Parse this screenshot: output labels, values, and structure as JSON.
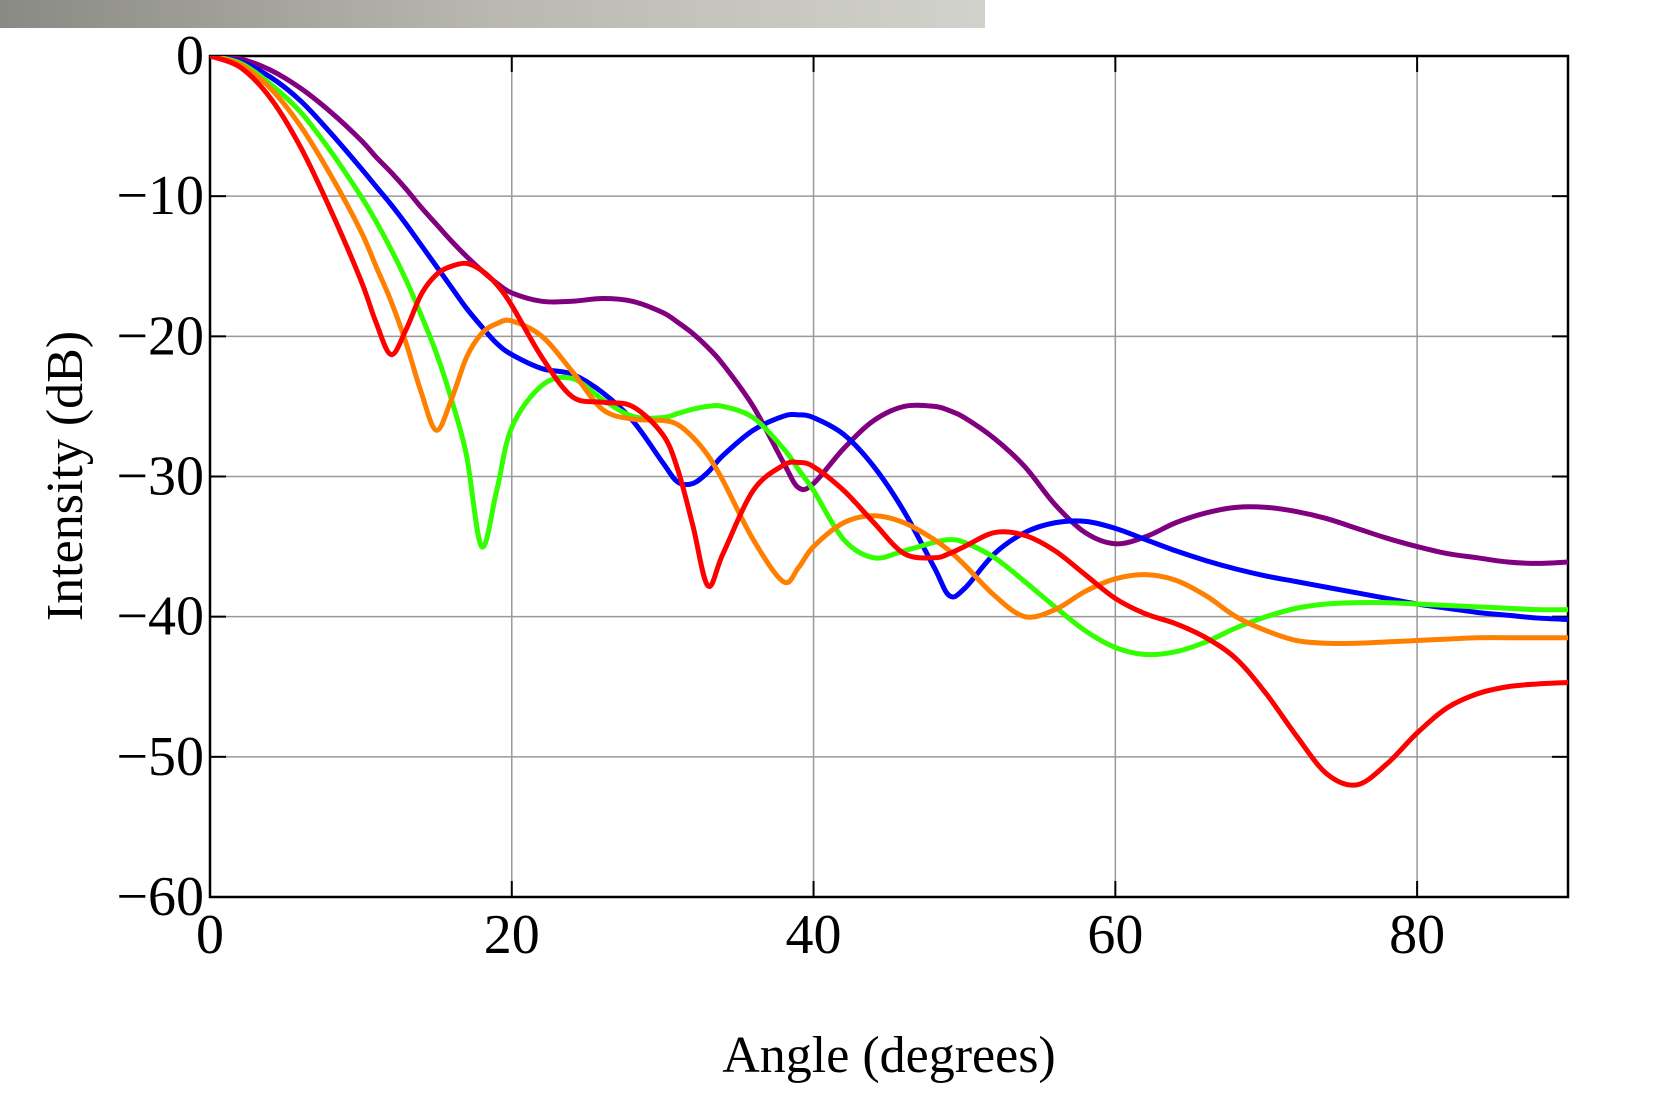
{
  "chart_data": {
    "type": "line",
    "xlabel": "Angle (degrees)",
    "ylabel": "Intensity (dB)",
    "xlim": [
      0,
      90
    ],
    "ylim": [
      -60,
      0
    ],
    "xticks": [
      0,
      20,
      40,
      60,
      80
    ],
    "yticks": [
      {
        "value": -60,
        "label": "−60"
      },
      {
        "value": -50,
        "label": "−50"
      },
      {
        "value": -40,
        "label": "−40"
      },
      {
        "value": -30,
        "label": "−30"
      },
      {
        "value": -20,
        "label": "−20"
      },
      {
        "value": -10,
        "label": "−10"
      },
      0
    ],
    "grid": true,
    "x": [
      0,
      2,
      4,
      6,
      8,
      10,
      11,
      12,
      13,
      14,
      15,
      16,
      17,
      18,
      19,
      20,
      22,
      24,
      26,
      28,
      30,
      31,
      32,
      33,
      34,
      36,
      38,
      39,
      40,
      42,
      44,
      46,
      48,
      49,
      50,
      52,
      54,
      56,
      58,
      60,
      62,
      64,
      66,
      68,
      70,
      72,
      74,
      76,
      78,
      80,
      82,
      84,
      86,
      88,
      90
    ],
    "series": [
      {
        "color": "#800080",
        "values": [
          0,
          -0.2,
          -1,
          -2.3,
          -4,
          -6,
          -7.2,
          -8.3,
          -9.5,
          -10.8,
          -12,
          -13.2,
          -14.3,
          -15.3,
          -16.2,
          -16.9,
          -17.5,
          -17.5,
          -17.3,
          -17.5,
          -18.3,
          -19,
          -19.8,
          -20.8,
          -22,
          -25,
          -29,
          -30.8,
          -30.5,
          -28,
          -26,
          -25,
          -25,
          -25.3,
          -25.8,
          -27.3,
          -29.3,
          -32,
          -34,
          -34.8,
          -34.3,
          -33.3,
          -32.6,
          -32.2,
          -32.2,
          -32.5,
          -33,
          -33.7,
          -34.4,
          -35,
          -35.5,
          -35.8,
          -36.1,
          -36.2,
          -36.1
        ]
      },
      {
        "color": "#0000ff",
        "values": [
          0,
          -0.4,
          -1.5,
          -3.2,
          -5.5,
          -8,
          -9.3,
          -10.6,
          -12,
          -13.5,
          -15,
          -16.5,
          -18,
          -19.3,
          -20.5,
          -21.3,
          -22.3,
          -22.7,
          -24,
          -26,
          -29,
          -30.4,
          -30.5,
          -29.7,
          -28.5,
          -26.7,
          -25.7,
          -25.6,
          -25.8,
          -27,
          -29.3,
          -32.5,
          -36.5,
          -38.5,
          -38,
          -35.5,
          -34,
          -33.3,
          -33.2,
          -33.7,
          -34.5,
          -35.3,
          -36,
          -36.6,
          -37.1,
          -37.5,
          -37.9,
          -38.3,
          -38.7,
          -39.1,
          -39.4,
          -39.7,
          -39.9,
          -40.1,
          -40.2
        ]
      },
      {
        "color": "#33ff00",
        "values": [
          0,
          -0.5,
          -2,
          -4,
          -6.8,
          -10,
          -11.8,
          -13.8,
          -16,
          -18.5,
          -21.2,
          -24.5,
          -28.5,
          -35,
          -31,
          -26.5,
          -23.5,
          -23,
          -24.5,
          -25.7,
          -25.8,
          -25.5,
          -25.2,
          -25,
          -25,
          -25.8,
          -28,
          -29.5,
          -31,
          -34.5,
          -35.8,
          -35.3,
          -34.7,
          -34.5,
          -34.7,
          -35.8,
          -37.5,
          -39.3,
          -41,
          -42.2,
          -42.7,
          -42.5,
          -41.8,
          -40.8,
          -40,
          -39.4,
          -39.1,
          -39,
          -39,
          -39.1,
          -39.2,
          -39.3,
          -39.4,
          -39.5,
          -39.5
        ]
      },
      {
        "color": "#ff8000",
        "values": [
          0,
          -0.6,
          -2.3,
          -5,
          -8.5,
          -12.5,
          -15,
          -17.5,
          -20.5,
          -24,
          -26.7,
          -24.5,
          -21.5,
          -19.8,
          -19.1,
          -18.9,
          -20,
          -22.5,
          -25.2,
          -25.9,
          -26,
          -26.3,
          -27.2,
          -28.5,
          -30.3,
          -34.5,
          -37.5,
          -36.5,
          -35,
          -33.3,
          -32.8,
          -33.3,
          -34.5,
          -35.3,
          -36.3,
          -38.5,
          -40,
          -39.5,
          -38.2,
          -37.3,
          -37,
          -37.4,
          -38.5,
          -40,
          -41,
          -41.7,
          -41.9,
          -41.9,
          -41.8,
          -41.7,
          -41.6,
          -41.5,
          -41.5,
          -41.5,
          -41.5
        ]
      },
      {
        "color": "#ff0000",
        "values": [
          0,
          -0.8,
          -3,
          -6.5,
          -11,
          -16,
          -19,
          -21.3,
          -19.5,
          -17,
          -15.6,
          -15,
          -14.8,
          -15.3,
          -16.3,
          -17.8,
          -21.5,
          -24.3,
          -24.7,
          -25,
          -27,
          -29.5,
          -33.5,
          -37.8,
          -35.5,
          -31,
          -29.2,
          -29,
          -29.3,
          -31,
          -33.3,
          -35.5,
          -35.8,
          -35.5,
          -35,
          -34,
          -34.2,
          -35.3,
          -37,
          -38.7,
          -39.8,
          -40.5,
          -41.5,
          -43,
          -45.5,
          -48.5,
          -51.2,
          -52,
          -50.5,
          -48.3,
          -46.5,
          -45.5,
          -45,
          -44.8,
          -44.7
        ]
      }
    ]
  }
}
